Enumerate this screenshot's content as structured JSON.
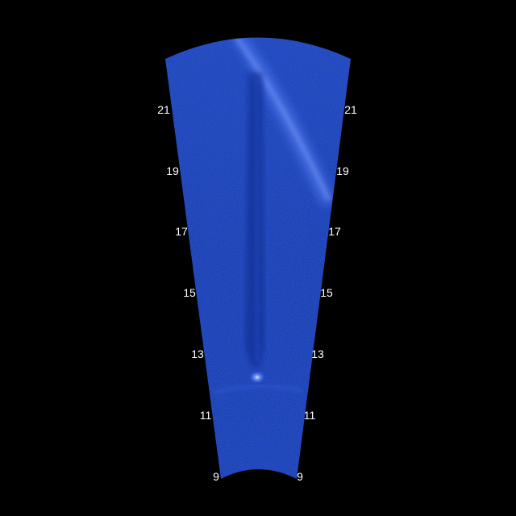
{
  "sonar": {
    "range_labels": [
      "9",
      "11",
      "13",
      "15",
      "17",
      "19",
      "21"
    ],
    "colors": {
      "background": "#000000",
      "fan_base": "#1a3fbf",
      "fan_dark": "#0d2a8c",
      "echo_bright": "#5f88ff",
      "echo_core": "#9fb8ff",
      "label_text": "#ffffff"
    }
  }
}
